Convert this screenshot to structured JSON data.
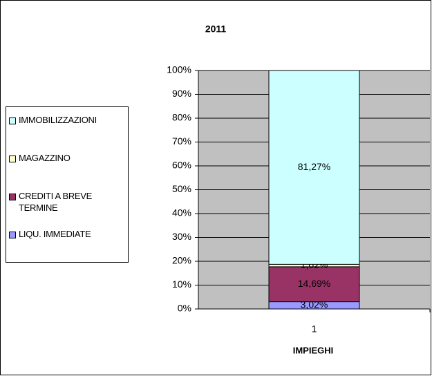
{
  "chart_data": {
    "type": "stacked_bar",
    "title": "2011",
    "x_label": "IMPIEGHI",
    "categories": [
      "1"
    ],
    "series": [
      {
        "name": "LIQU. IMMEDIATE",
        "color": "#9999ff",
        "values": [
          3.02
        ],
        "value_labels": [
          "3,02%"
        ]
      },
      {
        "name": "CREDITI A BREVE TERMINE",
        "color": "#993366",
        "values": [
          14.69
        ],
        "value_labels": [
          "14,69%"
        ]
      },
      {
        "name": "MAGAZZINO",
        "color": "#ffffcc",
        "values": [
          1.02
        ],
        "value_labels": [
          "1,02%"
        ]
      },
      {
        "name": "IMMOBILIZZAZIONI",
        "color": "#ccffff",
        "values": [
          81.27
        ],
        "value_labels": [
          "81,27%"
        ]
      }
    ],
    "ylim": [
      0,
      100
    ],
    "yticks": [
      {
        "value": 0,
        "label": "0%"
      },
      {
        "value": 10,
        "label": "10%"
      },
      {
        "value": 20,
        "label": "20%"
      },
      {
        "value": 30,
        "label": "30%"
      },
      {
        "value": 40,
        "label": "40%"
      },
      {
        "value": 50,
        "label": "50%"
      },
      {
        "value": 60,
        "label": "60%"
      },
      {
        "value": 70,
        "label": "70%"
      },
      {
        "value": 80,
        "label": "80%"
      },
      {
        "value": 90,
        "label": "90%"
      },
      {
        "value": 100,
        "label": "100%"
      }
    ],
    "grid": true,
    "legend": "left",
    "plot_background": "#c0c0c0"
  }
}
